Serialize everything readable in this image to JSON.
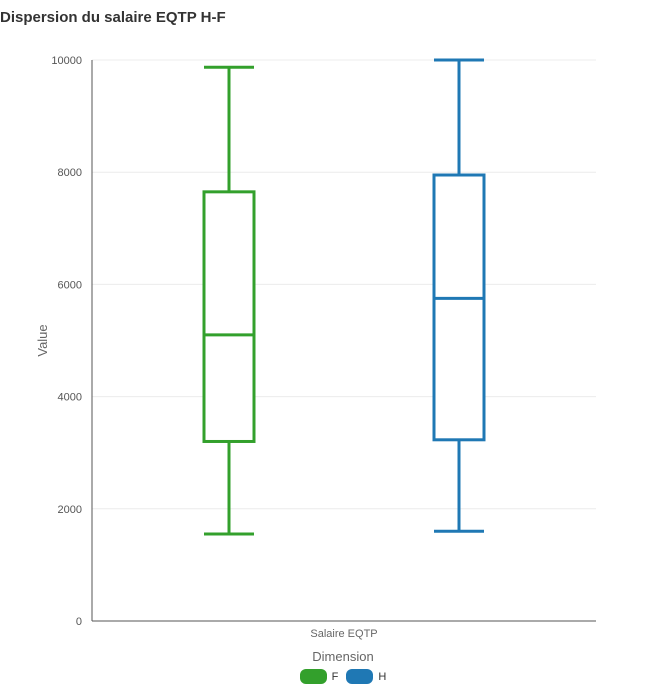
{
  "title": "Dispersion du salaire EQTP H-F",
  "chart_data": {
    "type": "boxplot",
    "title": "Dispersion du salaire EQTP H-F",
    "xlabel": "",
    "ylabel": "Value",
    "categories": [
      "Salaire EQTP"
    ],
    "ylim": [
      0,
      10000
    ],
    "yticks": [
      0,
      2000,
      4000,
      6000,
      8000,
      10000
    ],
    "grid": true,
    "legend_title": "Dimension",
    "legend_position": "bottom",
    "series": [
      {
        "name": "F",
        "color": "#33a02c",
        "min": 1550,
        "q1": 3200,
        "median": 5100,
        "q3": 7650,
        "max": 9870
      },
      {
        "name": "H",
        "color": "#1f78b4",
        "min": 1600,
        "q1": 3230,
        "median": 5750,
        "q3": 7950,
        "max": 10000
      }
    ]
  }
}
